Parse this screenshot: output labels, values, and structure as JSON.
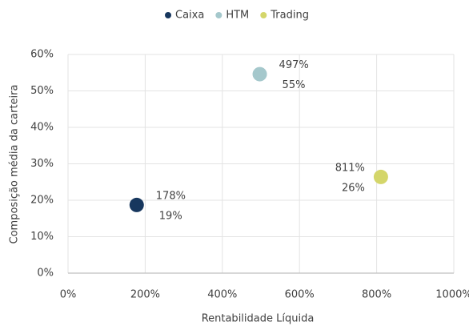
{
  "chart_data": {
    "type": "scatter",
    "x_label": "Rentabilidade Líquida",
    "y_label": "Composição média da carteira",
    "xlim": [
      0,
      1000
    ],
    "xticks": [
      {
        "value": 0,
        "label": "0%"
      },
      {
        "value": 200,
        "label": "200%"
      },
      {
        "value": 400,
        "label": "400%"
      },
      {
        "value": 600,
        "label": "600%"
      },
      {
        "value": 800,
        "label": "800%"
      },
      {
        "value": 1000,
        "label": "1000%"
      }
    ],
    "ylim": [
      0,
      60
    ],
    "yticks": [
      {
        "value": 0,
        "label": "0%"
      },
      {
        "value": 10,
        "label": "10%"
      },
      {
        "value": 20,
        "label": "20%"
      },
      {
        "value": 30,
        "label": "30%"
      },
      {
        "value": 40,
        "label": "40%"
      },
      {
        "value": 50,
        "label": "50%"
      },
      {
        "value": 60,
        "label": "60%"
      }
    ],
    "grid": true,
    "legend": "top",
    "series": [
      {
        "name": "Caixa",
        "color": "#17375e",
        "x": [
          178
        ],
        "values": [
          18.7
        ],
        "x_labels": [
          "178%"
        ],
        "value_labels": [
          "19%"
        ]
      },
      {
        "name": "HTM",
        "color": "#a5c8cc",
        "x": [
          497
        ],
        "values": [
          54.6
        ],
        "x_labels": [
          "497%"
        ],
        "value_labels": [
          "55%"
        ]
      },
      {
        "name": "Trading",
        "color": "#d4d66a",
        "x": [
          811
        ],
        "values": [
          26.4
        ],
        "x_labels": [
          "811%"
        ],
        "value_labels": [
          "26%"
        ]
      }
    ]
  }
}
